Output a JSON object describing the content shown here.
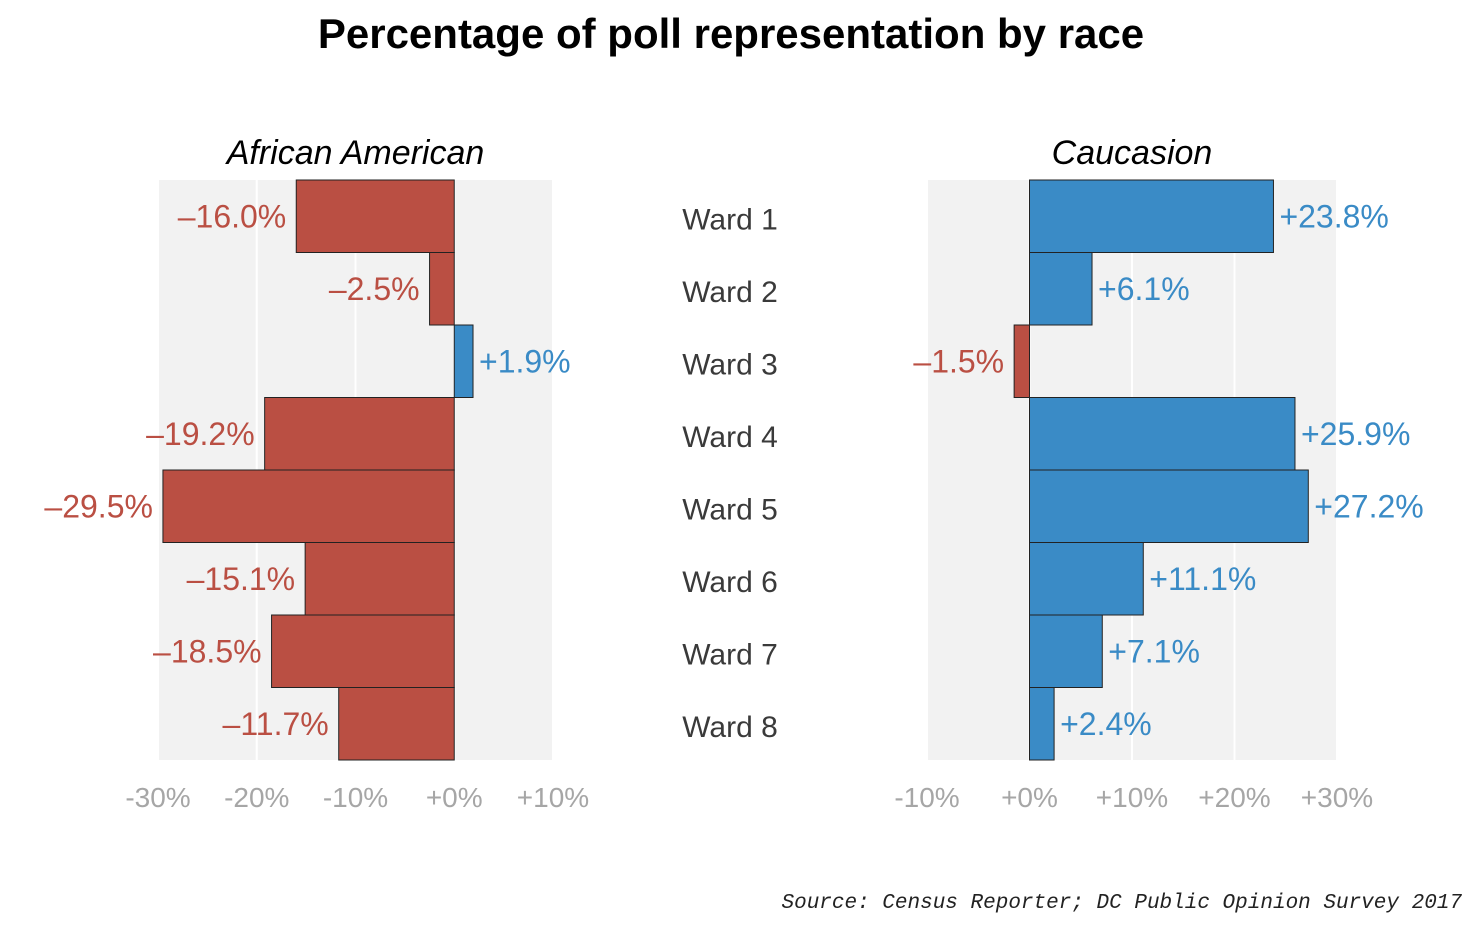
{
  "title": "Percentage of poll representation by race",
  "source": "Source: Census Reporter; DC Public Opinion Survey 2017",
  "colors": {
    "positive": "#3A8BC6",
    "negative": "#BA4F43",
    "panel_bg": "#F2F2F2",
    "grid": "#FFFFFF",
    "tick": "#A6A6A6",
    "ward_label": "#3A3A3A"
  },
  "chart_data": [
    {
      "type": "bar",
      "orientation": "horizontal",
      "title": "African American",
      "categories": [
        "Ward 1",
        "Ward 2",
        "Ward 3",
        "Ward 4",
        "Ward 5",
        "Ward 6",
        "Ward 7",
        "Ward 8"
      ],
      "values": [
        -16.0,
        -2.5,
        1.9,
        -19.2,
        -29.5,
        -15.1,
        -18.5,
        -11.7
      ],
      "labels": [
        "–16.0%",
        "–2.5%",
        "+1.9%",
        "–19.2%",
        "–29.5%",
        "–15.1%",
        "–18.5%",
        "–11.7%"
      ],
      "xlim": [
        -30,
        10
      ],
      "ticks": [
        -30,
        -20,
        -10,
        0,
        10
      ],
      "tick_labels": [
        "-30%",
        "-20%",
        "-10%",
        "+0%",
        "+10%"
      ]
    },
    {
      "type": "bar",
      "orientation": "horizontal",
      "title": "Caucasion",
      "categories": [
        "Ward 1",
        "Ward 2",
        "Ward 3",
        "Ward 4",
        "Ward 5",
        "Ward 6",
        "Ward 7",
        "Ward 8"
      ],
      "values": [
        23.8,
        6.1,
        -1.5,
        25.9,
        27.2,
        11.1,
        7.1,
        2.4
      ],
      "labels": [
        "+23.8%",
        "+6.1%",
        "–1.5%",
        "+25.9%",
        "+27.2%",
        "+11.1%",
        "+7.1%",
        "+2.4%"
      ],
      "xlim": [
        -10,
        30
      ],
      "ticks": [
        -10,
        0,
        10,
        20,
        30
      ],
      "tick_labels": [
        "-10%",
        "+0%",
        "+10%",
        "+20%",
        "+30%"
      ]
    }
  ]
}
